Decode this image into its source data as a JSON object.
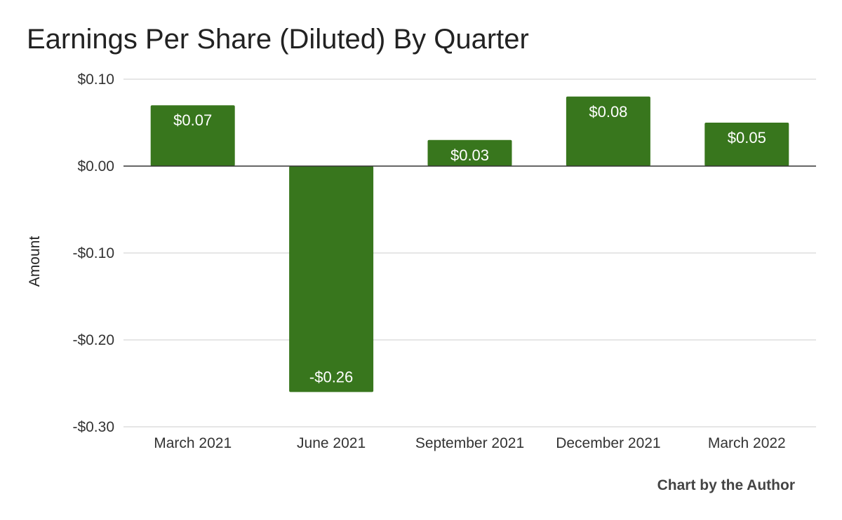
{
  "chart_data": {
    "type": "bar",
    "title": "Earnings Per Share (Diluted) By Quarter",
    "xlabel": "",
    "ylabel": "Amount",
    "categories": [
      "March 2021",
      "June 2021",
      "September 2021",
      "December 2021",
      "March 2022"
    ],
    "values": [
      0.07,
      -0.26,
      0.03,
      0.08,
      0.05
    ],
    "data_labels": [
      "$0.07",
      "-$0.26",
      "$0.03",
      "$0.08",
      "$0.05"
    ],
    "yticks": [
      0.1,
      0.0,
      -0.1,
      -0.2,
      -0.3
    ],
    "ytick_labels": [
      "$0.10",
      "$0.00",
      "-$0.10",
      "-$0.20",
      "-$0.30"
    ],
    "ylim": [
      -0.3,
      0.1
    ],
    "grid": true,
    "legend": "none",
    "bar_color": "#38761d",
    "annotation": "Chart by the Author"
  }
}
